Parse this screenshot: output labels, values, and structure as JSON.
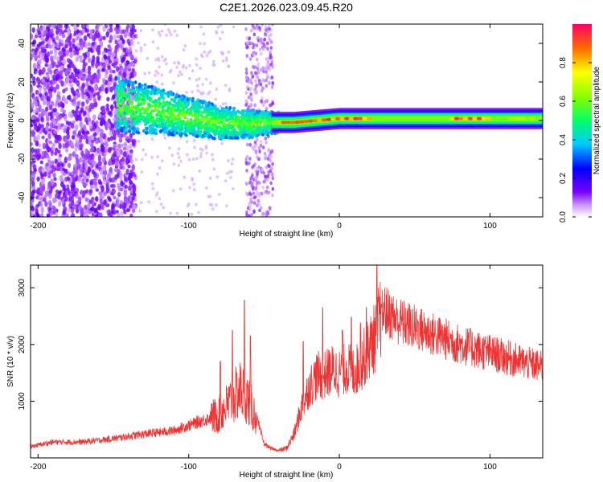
{
  "title": "C2E1.2026.023.09.45.R20",
  "chart_data": [
    {
      "type": "heatmap",
      "title": "C2E1.2026.023.09.45.R20",
      "xlabel": "Height of straight line (km)",
      "ylabel": "Frequency (Hz)",
      "xlim": [
        -205,
        135
      ],
      "ylim": [
        -50,
        50
      ],
      "xticks": [
        -200,
        -100,
        0,
        100
      ],
      "yticks": [
        -40,
        -20,
        0,
        20,
        40
      ],
      "xtick_labels": [
        "-200",
        "-100",
        "0",
        "100"
      ],
      "ytick_labels": [
        "-40",
        "-20",
        "0",
        "20",
        "40"
      ],
      "colorbar": {
        "label": "Normalized spectral amplitude",
        "range": [
          0,
          1
        ],
        "ticks": [
          0.0,
          0.2,
          0.4,
          0.6,
          0.8
        ],
        "tick_labels": [
          "0.0",
          "0.2",
          "0.4",
          "0.6",
          "0.8"
        ]
      },
      "centerline": [
        {
          "x": -145,
          "f": 8
        },
        {
          "x": -120,
          "f": 5
        },
        {
          "x": -100,
          "f": 2
        },
        {
          "x": -80,
          "f": -1
        },
        {
          "x": -60,
          "f": -2
        },
        {
          "x": -45,
          "f": -1
        },
        {
          "x": -30,
          "f": -1
        },
        {
          "x": -15,
          "f": 0
        },
        {
          "x": 0,
          "f": 1
        },
        {
          "x": 30,
          "f": 1
        },
        {
          "x": 60,
          "f": 1
        },
        {
          "x": 90,
          "f": 1
        },
        {
          "x": 135,
          "f": 1
        }
      ],
      "peak_segments": [
        {
          "x1": -40,
          "x2": 20,
          "amplitude": 0.95
        },
        {
          "x1": 75,
          "x2": 100,
          "amplitude": 0.95
        },
        {
          "x1": 110,
          "x2": 130,
          "amplitude": 0.7
        }
      ]
    },
    {
      "type": "line",
      "xlabel": "Height of straight line (km)",
      "ylabel": "SNR (10 * v/v)",
      "xlim": [
        -205,
        135
      ],
      "ylim": [
        0,
        3400
      ],
      "xticks": [
        -200,
        -100,
        0,
        100
      ],
      "yticks": [
        1000,
        2000,
        3000
      ],
      "xtick_labels": [
        "-200",
        "-100",
        "0",
        "100"
      ],
      "ytick_labels": [
        "1000",
        "2000",
        "3000"
      ],
      "series": [
        {
          "name": "SNR",
          "color": "#ee3333",
          "envelope_x": [
            -205,
            -190,
            -170,
            -150,
            -130,
            -110,
            -95,
            -80,
            -72,
            -66,
            -62,
            -55,
            -50,
            -45,
            -40,
            -35,
            -30,
            -25,
            -20,
            -15,
            -10,
            -5,
            0,
            5,
            10,
            15,
            20,
            24,
            27,
            30,
            40,
            60,
            80,
            100,
            120,
            135
          ],
          "envelope_y": [
            200,
            280,
            280,
            340,
            420,
            480,
            620,
            760,
            1000,
            1200,
            1100,
            700,
            250,
            160,
            130,
            170,
            420,
            900,
            1250,
            1450,
            1450,
            1550,
            1500,
            1600,
            1500,
            1700,
            1950,
            2150,
            2450,
            2600,
            2400,
            2200,
            2000,
            1850,
            1700,
            1600
          ],
          "spikes": [
            {
              "x": -79,
              "y": 1700
            },
            {
              "x": -71,
              "y": 2250
            },
            {
              "x": -63,
              "y": 2780
            },
            {
              "x": -59,
              "y": 2150
            },
            {
              "x": -24,
              "y": 2050
            },
            {
              "x": -11,
              "y": 2650
            },
            {
              "x": 2,
              "y": 2250
            },
            {
              "x": 8,
              "y": 2480
            },
            {
              "x": 14,
              "y": 2380
            },
            {
              "x": 18,
              "y": 2650
            },
            {
              "x": 25,
              "y": 3400
            },
            {
              "x": 28,
              "y": 2700
            }
          ]
        }
      ]
    }
  ]
}
